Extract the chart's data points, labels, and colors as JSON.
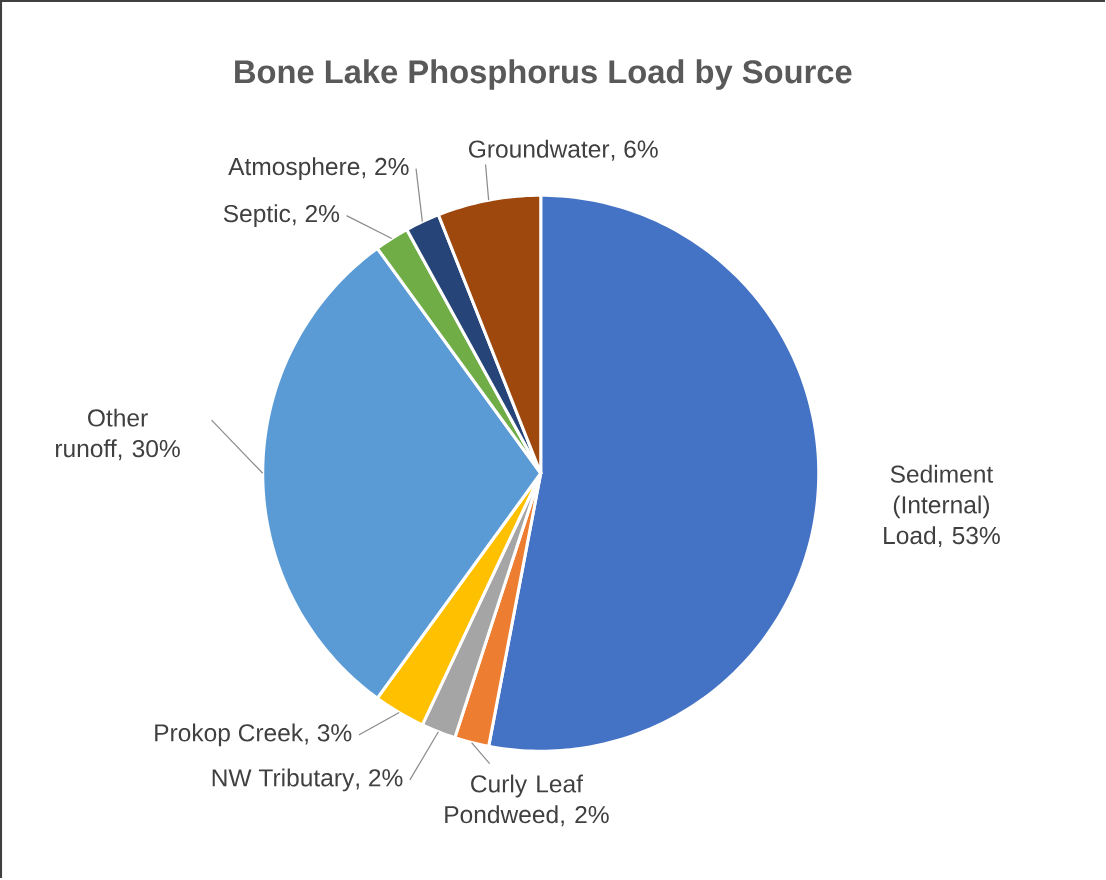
{
  "chart_data": {
    "type": "pie",
    "title": "Bone Lake Phosphorus Load by Source",
    "categories": [
      "Sediment (Internal) Load",
      "Curly Leaf Pondweed",
      "NW Tributary",
      "Prokop Creek",
      "Other runoff",
      "Septic",
      "Atmosphere",
      "Groundwater"
    ],
    "values": [
      53,
      2,
      2,
      3,
      30,
      2,
      2,
      6
    ],
    "value_labels": [
      ", 53%",
      ", 2%",
      ", 2%",
      ", 3%",
      ", 30%",
      ", 2%",
      ", 2%",
      ", 6%"
    ],
    "colors": [
      "#4472c4",
      "#ed7d31",
      "#a5a5a5",
      "#ffc000",
      "#5b9bd5",
      "#70ad47",
      "#264478",
      "#9e480e"
    ]
  }
}
